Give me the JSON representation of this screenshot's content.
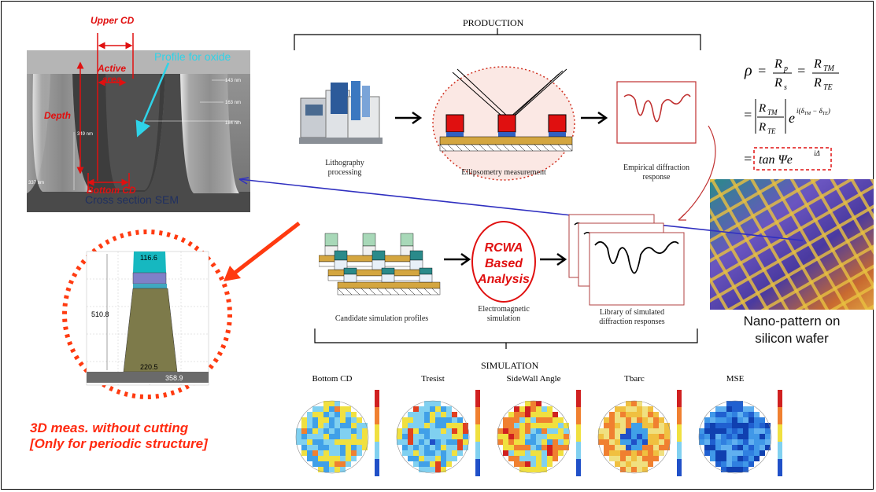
{
  "sections": {
    "production": "PRODUCTION",
    "simulation": "SIMULATION"
  },
  "sem": {
    "upper_cd": "Upper CD",
    "active_area_line1": "Active",
    "active_area_line2": "area",
    "depth": "Depth",
    "bottom_cd": "Bottom CD",
    "profile_for_oxide": "Profile for oxide",
    "caption": "Cross section SEM",
    "dims": [
      "143 nm",
      "163 nm",
      "184 nm",
      "349 nm",
      "337 nm"
    ]
  },
  "production_steps": [
    {
      "label_line1": "Lithography",
      "label_line2": "processing"
    },
    {
      "label_line1": "Ellipsometry measurement",
      "label_line2": ""
    },
    {
      "label_line1": "Empirical diffraction",
      "label_line2": "response"
    }
  ],
  "simulation_steps": [
    {
      "label_line1": "Candidate simulation profiles",
      "label_line2": ""
    },
    {
      "label_line1": "Electromagnetic",
      "label_line2": "simulation"
    },
    {
      "label_line1": "Library of simulated",
      "label_line2": "diffraction responses"
    }
  ],
  "rcwa": {
    "line1": "RCWA",
    "line2": "Based",
    "line3": "Analysis"
  },
  "formula": {
    "rho": "ρ",
    "rp": "R",
    "rp_sub": "p",
    "rs": "R",
    "rs_sub": "s",
    "rtm": "R",
    "rtm_sub": "TM",
    "rte": "R",
    "rte_sub": "TE",
    "exp_text": "i(δ",
    "exp_tm": "TM",
    "exp_mid": " − δ",
    "exp_te": "TE",
    "exp_end": ")",
    "result": "tan Ψe",
    "result_exp": "iΔ"
  },
  "wafer_caption_line1": "Nano-pattern on",
  "wafer_caption_line2": "silicon wafer",
  "profile_dims": {
    "top": "116.6",
    "height": "510.8",
    "bottom": "220.5",
    "base": "358.9"
  },
  "note_line1": "3D meas. without cutting",
  "note_line2": "[Only for periodic structure]",
  "maps": [
    "Bottom CD",
    "Tresist",
    "SideWall Angle",
    "Tbarc",
    "MSE"
  ],
  "colors": {
    "red": "#e01010",
    "cyan": "#2fd3e8",
    "blue_arrow": "#3030c0",
    "orange_red": "#ff3a10"
  }
}
